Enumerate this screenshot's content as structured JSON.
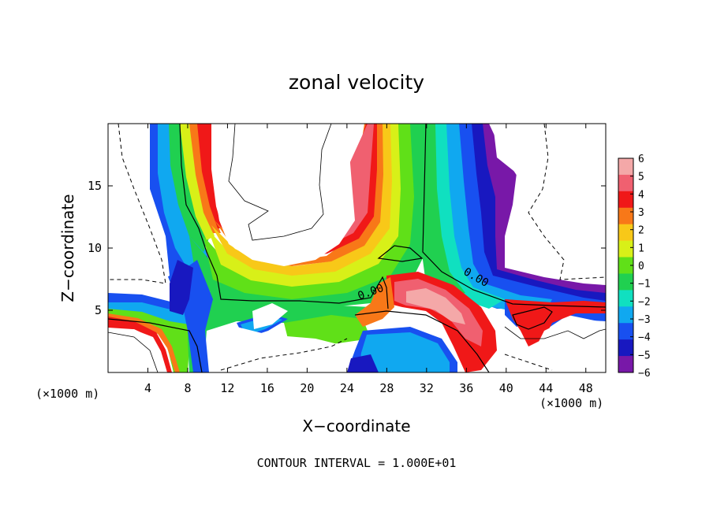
{
  "chart_data": {
    "type": "heatmap",
    "title": "zonal velocity",
    "xlabel": "X−coordinate",
    "ylabel": "Z−coordinate",
    "x_unit_label_left": "(×1000 m)",
    "x_unit_label_right": "(×1000 m)",
    "footer": "CONTOUR INTERVAL = 1.000E+01",
    "xlim": [
      0,
      50
    ],
    "ylim": [
      0,
      20
    ],
    "x_ticks": [
      {
        "v": 4,
        "label": "4"
      },
      {
        "v": 8,
        "label": "8"
      },
      {
        "v": 12,
        "label": "12"
      },
      {
        "v": 16,
        "label": "16"
      },
      {
        "v": 20,
        "label": "20"
      },
      {
        "v": 24,
        "label": "24"
      },
      {
        "v": 28,
        "label": "28"
      },
      {
        "v": 32,
        "label": "32"
      },
      {
        "v": 36,
        "label": "36"
      },
      {
        "v": 40,
        "label": "40"
      },
      {
        "v": 44,
        "label": "44"
      },
      {
        "v": 48,
        "label": "48"
      }
    ],
    "y_ticks": [
      {
        "v": 5,
        "label": "5"
      },
      {
        "v": 10,
        "label": "10"
      },
      {
        "v": 15,
        "label": "15"
      }
    ],
    "contour_labels": [
      {
        "x": 26.5,
        "y": 6.2,
        "text": "0.00"
      },
      {
        "x": 36.8,
        "y": 7.4,
        "text": "0.00"
      }
    ],
    "colorbar": {
      "levels": [
        6,
        5,
        4,
        3,
        2,
        1,
        0,
        -1,
        -2,
        -3,
        -4,
        -5,
        -6
      ],
      "labels": [
        "6",
        "5",
        "4",
        "3",
        "2",
        "1",
        "0",
        "−1",
        "−2",
        "−3",
        "−4",
        "−5",
        "−6"
      ],
      "colors": [
        "#f4a8a8",
        "#f06070",
        "#f01818",
        "#f87818",
        "#f8c818",
        "#d8f018",
        "#60e018",
        "#20d050",
        "#10e0c0",
        "#10a8f0",
        "#1850f0",
        "#1818c0",
        "#7818a8"
      ]
    }
  }
}
